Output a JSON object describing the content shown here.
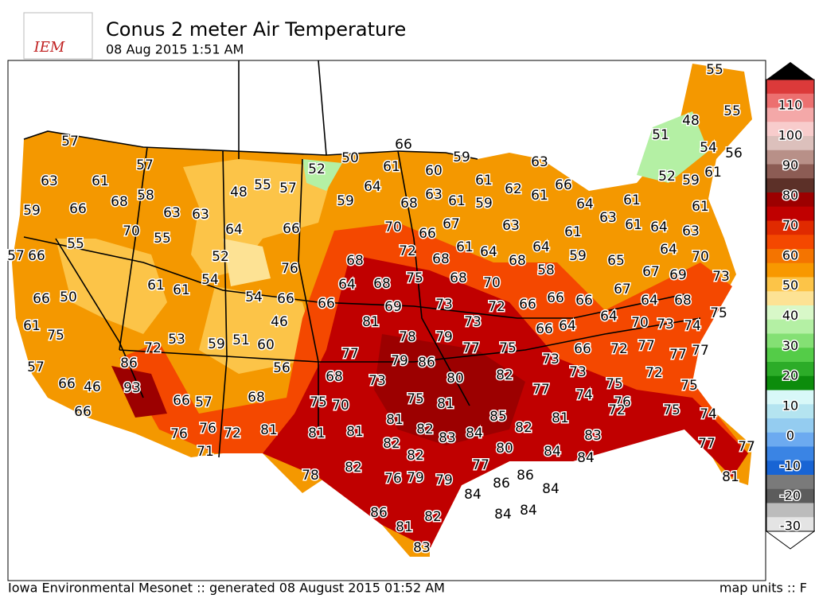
{
  "header": {
    "logo": "IEM",
    "title": "Conus 2 meter Air Temperature",
    "subtitle": "08 Aug 2015 1:51 AM"
  },
  "footer": {
    "left": "Iowa Environmental Mesonet :: generated 08 August 2015 01:52 AM",
    "right": "map units :: F"
  },
  "colorbar": {
    "ticks": [
      110,
      100,
      90,
      80,
      70,
      60,
      50,
      40,
      30,
      20,
      10,
      0,
      -10,
      -20,
      -30
    ],
    "colors": [
      "#dc3a3a",
      "#ec7070",
      "#f4a8a8",
      "#f8cccc",
      "#dcc0bc",
      "#b89088",
      "#8c5c54",
      "#5c3028",
      "#9c0000",
      "#c00000",
      "#e02a00",
      "#f44800",
      "#f47400",
      "#f89800",
      "#fcc448",
      "#fde294",
      "#d8f8c8",
      "#b4f0a4",
      "#84e074",
      "#54cc48",
      "#2cac28",
      "#0c8c0c",
      "#d8f8f8",
      "#b4e4f0",
      "#94ccf0",
      "#6caaf0",
      "#3a84e4",
      "#1864d4",
      "#7a7a7a",
      "#5c5c5c",
      "#bcbcbc",
      "#e4e4e4"
    ]
  },
  "stations": [
    55,
    55,
    48,
    51,
    54,
    56,
    66,
    57,
    57,
    50,
    59,
    52,
    61,
    60,
    63,
    61,
    66,
    61,
    52,
    59,
    63,
    61,
    58,
    48,
    55,
    57,
    64,
    63,
    62,
    61,
    68,
    59,
    68,
    61,
    59,
    64,
    61,
    61,
    59,
    66,
    63,
    63,
    63,
    70,
    55,
    64,
    66,
    70,
    66,
    67,
    63,
    61,
    61,
    64,
    63,
    55,
    61,
    64,
    72,
    68,
    68,
    64,
    59,
    65,
    64,
    70,
    57,
    66,
    52,
    76,
    68,
    58,
    67,
    69,
    73,
    54,
    75,
    68,
    70,
    61,
    61,
    64,
    68,
    67,
    66,
    50,
    54,
    66,
    66,
    69,
    73,
    72,
    66,
    66,
    66,
    64,
    68,
    46,
    81,
    73,
    64,
    66,
    64,
    70,
    73,
    74,
    75,
    61,
    75,
    53,
    78,
    79,
    72,
    59,
    51,
    60,
    77,
    77,
    75,
    66,
    72,
    77,
    77,
    77,
    86,
    79,
    86,
    73,
    56,
    57,
    68,
    73,
    80,
    82,
    73,
    72,
    93,
    66,
    46,
    77,
    74,
    75,
    75,
    68,
    75,
    70,
    75,
    81,
    66,
    57,
    76,
    72,
    75,
    74,
    66,
    85,
    81,
    81,
    82,
    83,
    84,
    82,
    76,
    76,
    72,
    81,
    81,
    81,
    82,
    83,
    77,
    77,
    71,
    82,
    80,
    84,
    84,
    78,
    82,
    77,
    76,
    79,
    79,
    86,
    86,
    84,
    84,
    81,
    84,
    84,
    86,
    82,
    81,
    83
  ]
}
